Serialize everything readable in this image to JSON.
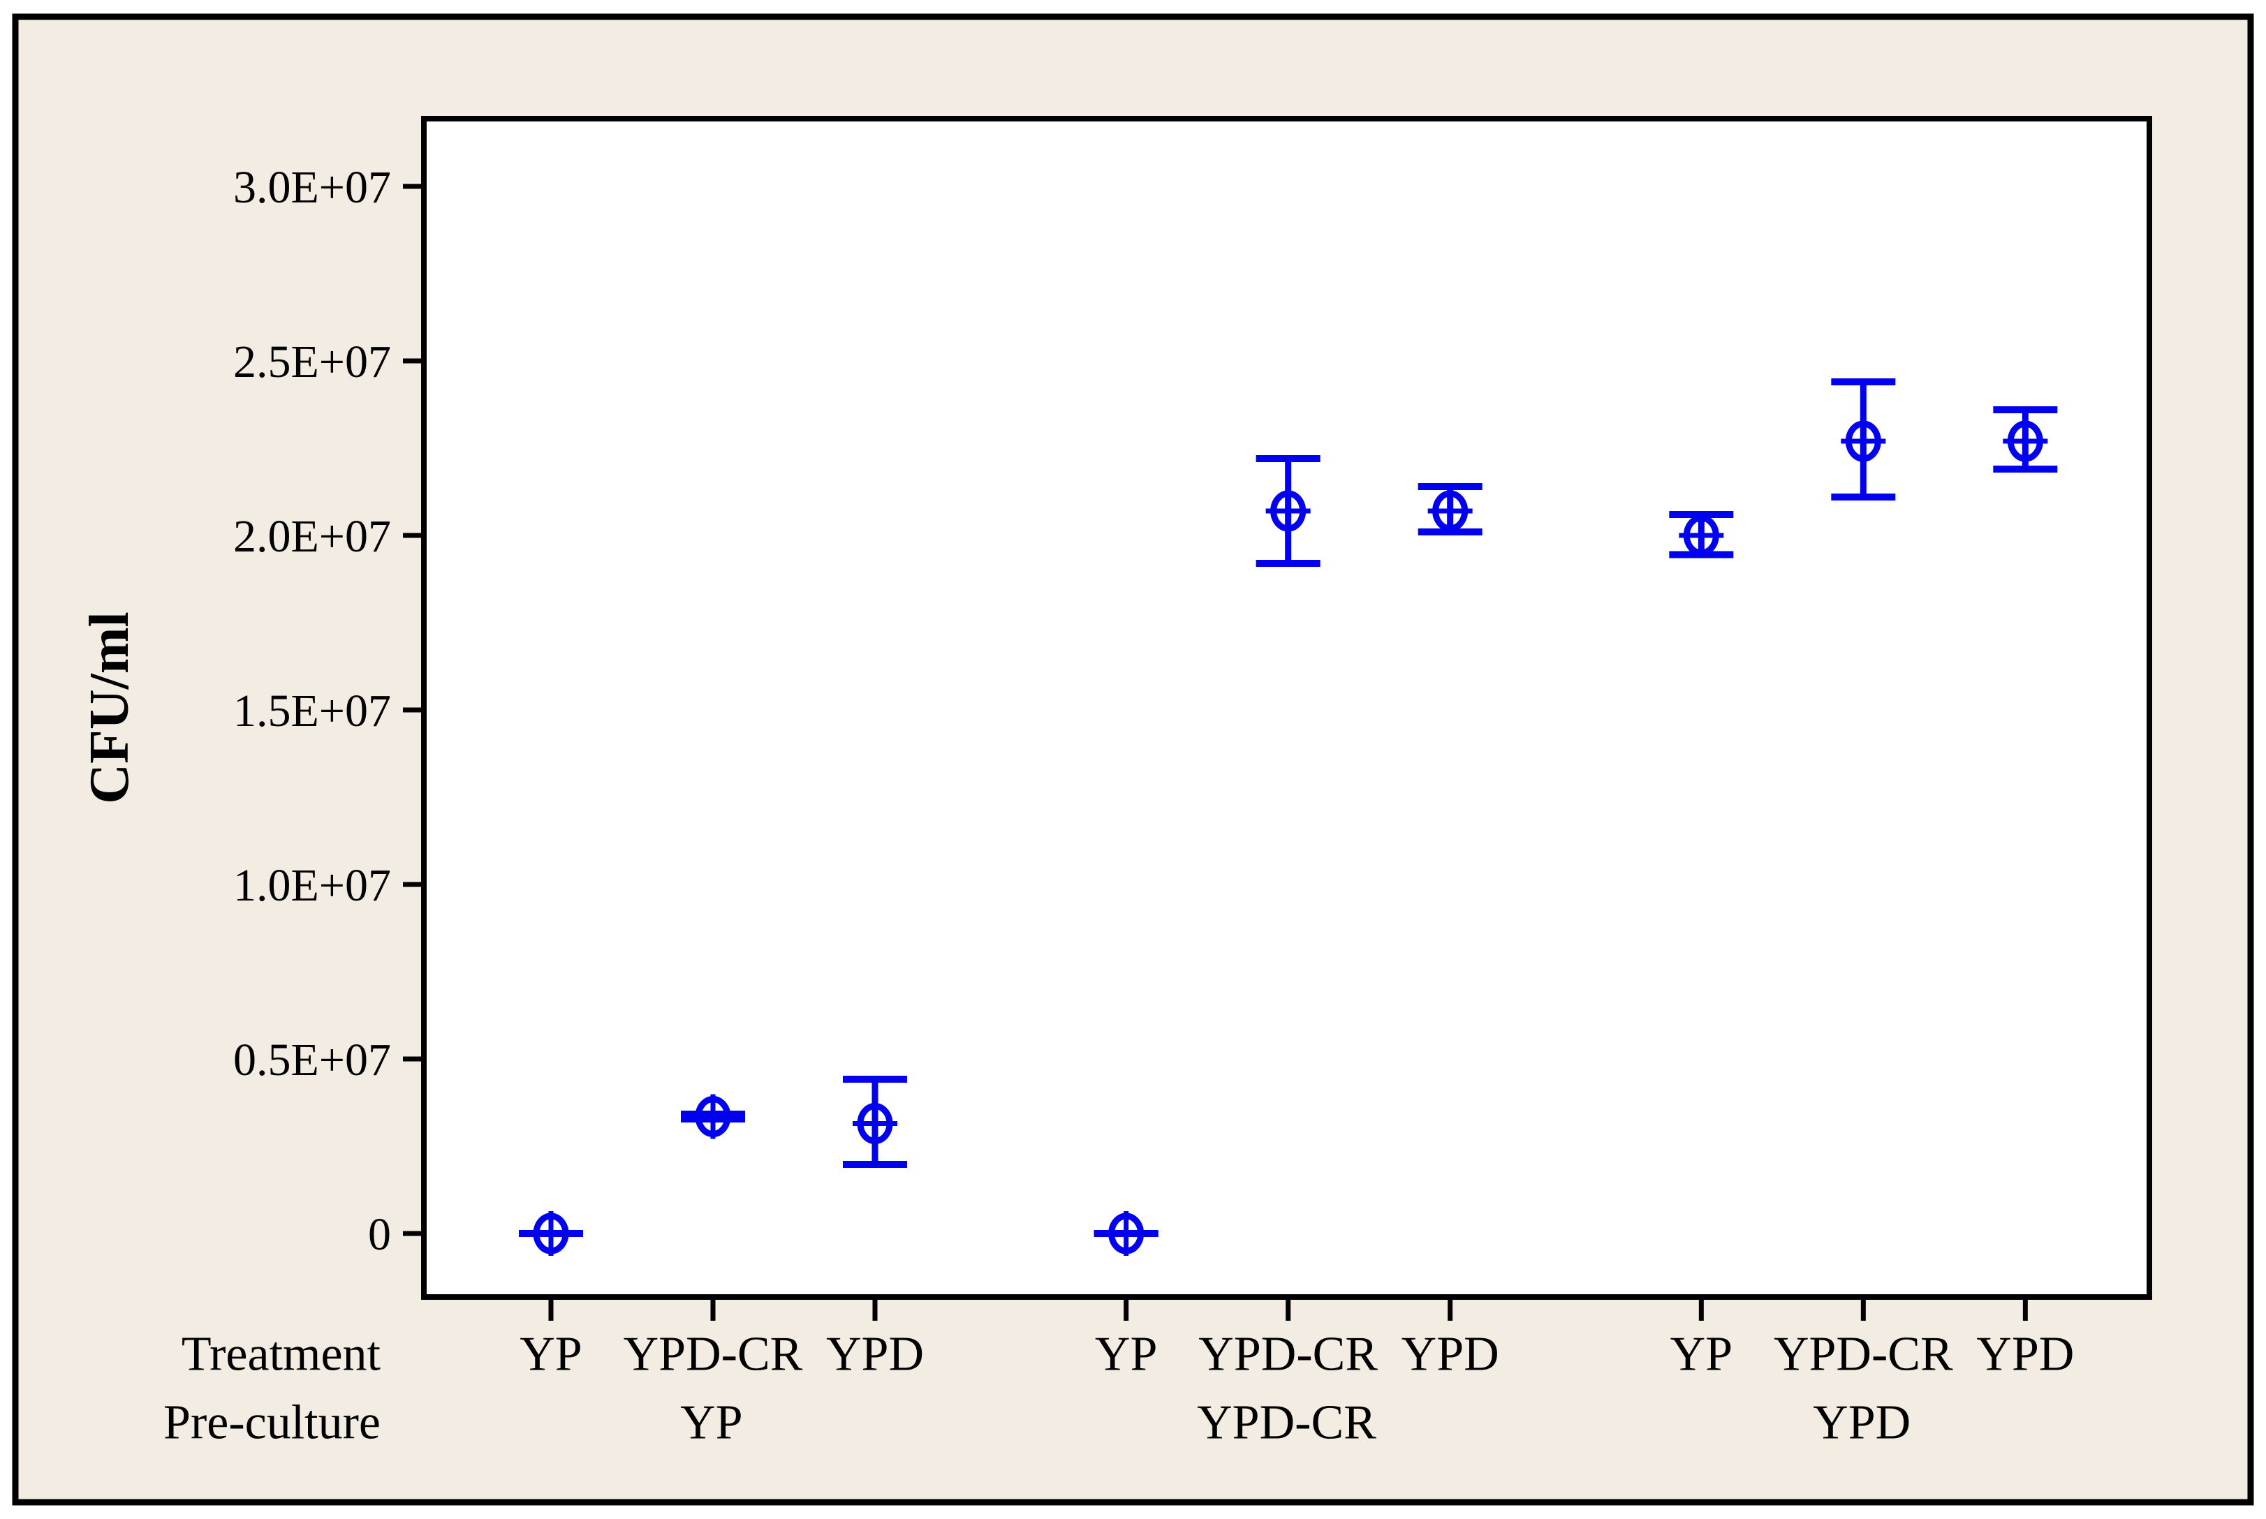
{
  "figure": {
    "background_color": "#F2ECE2",
    "plot_background_color": "#FFFFFF",
    "border_color": "#000000",
    "series_color": "#0101F0"
  },
  "chart_data": {
    "type": "scatter",
    "subtype": "interval-plot-with-error-bars",
    "title": "",
    "ylabel": "CFU/ml",
    "grid": false,
    "legend_position": "none",
    "ylim": [
      -1800000,
      32000000
    ],
    "yticks": [
      {
        "label": "3.0E+07",
        "value": 30000000
      },
      {
        "label": "2.5E+07",
        "value": 25000000
      },
      {
        "label": "2.0E+07",
        "value": 20000000
      },
      {
        "label": "1.5E+07",
        "value": 15000000
      },
      {
        "label": "1.0E+07",
        "value": 10000000
      },
      {
        "label": "0.5E+07",
        "value": 5000000
      },
      {
        "label": "0",
        "value": 0
      }
    ],
    "x": {
      "treatment_row_label": "Treatment",
      "preculture_row_label": "Pre-culture",
      "groups": [
        {
          "preculture": "YP",
          "points": [
            {
              "treatment": "YP",
              "mean": 0,
              "ci_low": 0,
              "ci_high": 0
            },
            {
              "treatment": "YPD-CR",
              "mean": 3350000,
              "ci_low": 3280000,
              "ci_high": 3420000
            },
            {
              "treatment": "YPD",
              "mean": 3150000,
              "ci_low": 1980000,
              "ci_high": 4420000
            }
          ]
        },
        {
          "preculture": "YPD-CR",
          "points": [
            {
              "treatment": "YP",
              "mean": 0,
              "ci_low": 0,
              "ci_high": 0
            },
            {
              "treatment": "YPD-CR",
              "mean": 20700000,
              "ci_low": 19200000,
              "ci_high": 22200000
            },
            {
              "treatment": "YPD",
              "mean": 20700000,
              "ci_low": 20100000,
              "ci_high": 21400000
            }
          ]
        },
        {
          "preculture": "YPD",
          "points": [
            {
              "treatment": "YP",
              "mean": 20000000,
              "ci_low": 19450000,
              "ci_high": 20600000
            },
            {
              "treatment": "YPD-CR",
              "mean": 22700000,
              "ci_low": 21100000,
              "ci_high": 24400000
            },
            {
              "treatment": "YPD",
              "mean": 22700000,
              "ci_low": 21900000,
              "ci_high": 23600000
            }
          ]
        }
      ]
    }
  }
}
